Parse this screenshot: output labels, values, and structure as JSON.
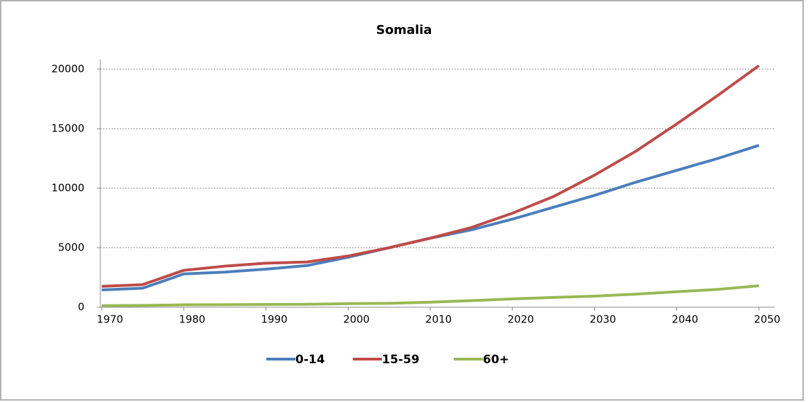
{
  "chart_data": {
    "type": "line",
    "title": "Somalia",
    "x": [
      1970,
      1975,
      1980,
      1985,
      1990,
      1995,
      2000,
      2005,
      2010,
      2015,
      2020,
      2025,
      2030,
      2035,
      2040,
      2045,
      2050
    ],
    "series": [
      {
        "name": "0-14",
        "color": "#4a7ebb",
        "values": [
          1450,
          1600,
          2800,
          2950,
          3200,
          3500,
          4200,
          5000,
          5800,
          6500,
          7400,
          8400,
          9400,
          10500,
          11500,
          12500,
          13600
        ]
      },
      {
        "name": "15-59",
        "color": "#be4b48",
        "values": [
          1750,
          1900,
          3100,
          3450,
          3700,
          3800,
          4300,
          5000,
          5800,
          6700,
          7900,
          9300,
          11100,
          13100,
          15400,
          17800,
          20300
        ]
      },
      {
        "name": "60+",
        "color": "#98b954",
        "values": [
          130,
          150,
          200,
          210,
          230,
          250,
          300,
          330,
          420,
          550,
          700,
          820,
          930,
          1100,
          1300,
          1500,
          1800
        ]
      }
    ],
    "xlim": [
      1970,
      2050
    ],
    "xticks": [
      1970,
      1980,
      1990,
      2000,
      2010,
      2020,
      2030,
      2040,
      2050
    ],
    "ylim": [
      0,
      20000
    ],
    "yticks": [
      0,
      5000,
      10000,
      15000,
      20000
    ],
    "grid": true,
    "legend": "bottom"
  }
}
